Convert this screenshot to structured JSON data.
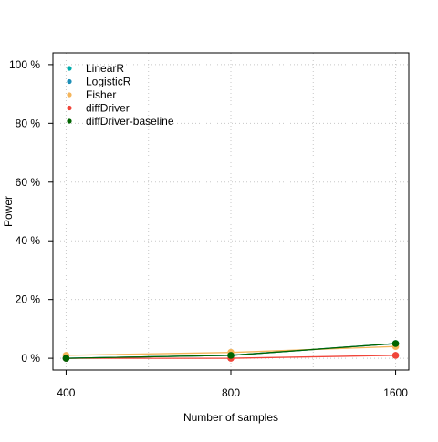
{
  "chart_data": {
    "type": "line",
    "title": "",
    "xlabel": "Number of samples",
    "ylabel": "Power",
    "x_scale": "log",
    "x": [
      400,
      800,
      1600
    ],
    "x_tick_labels": [
      "400",
      "800",
      "1600"
    ],
    "ylim": [
      0,
      100
    ],
    "y_ticks": [
      0,
      20,
      40,
      60,
      80,
      100
    ],
    "y_tick_labels": [
      "0 %",
      "20 %",
      "40 %",
      "60 %",
      "80 %",
      "100 %"
    ],
    "grid": true,
    "legend_position": "top-left",
    "series": [
      {
        "name": "LinearR",
        "color": "#00ACAC",
        "values": [
          0,
          1,
          5
        ]
      },
      {
        "name": "LogisticR",
        "color": "#1E8FB8",
        "values": [
          0,
          1,
          5
        ]
      },
      {
        "name": "Fisher",
        "color": "#F5B55B",
        "values": [
          1,
          2,
          4
        ]
      },
      {
        "name": "diffDriver",
        "color": "#F0453A",
        "values": [
          0,
          0,
          1
        ]
      },
      {
        "name": "diffDriver-baseline",
        "color": "#006400",
        "values": [
          0,
          1,
          5
        ]
      }
    ]
  }
}
